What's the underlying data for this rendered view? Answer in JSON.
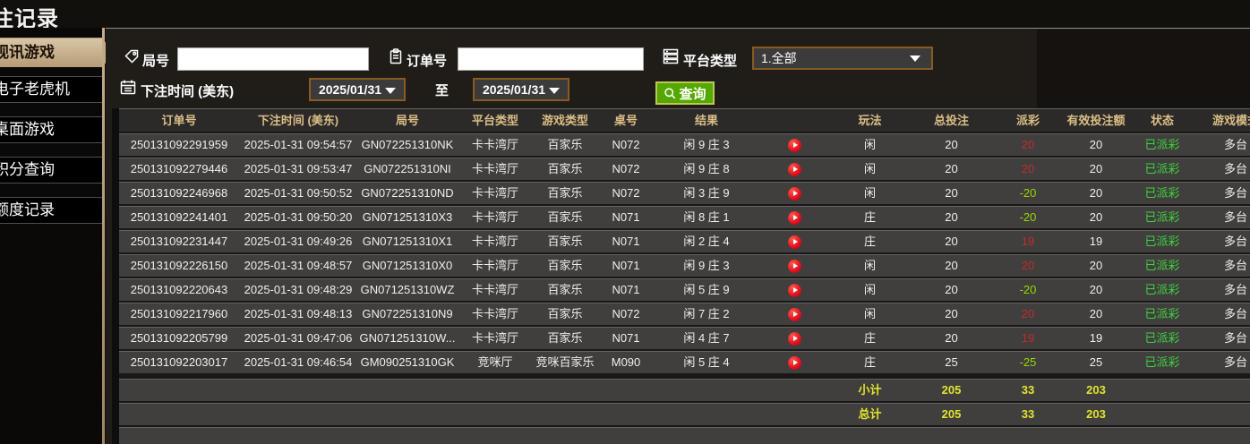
{
  "page": {
    "title": "注记录"
  },
  "sidebar": {
    "items": [
      {
        "label": "视讯游戏",
        "active": true
      },
      {
        "label": "电子老虎机",
        "active": false
      },
      {
        "label": "桌面游戏",
        "active": false
      },
      {
        "label": "积分查询",
        "active": false
      },
      {
        "label": "额度记录",
        "active": false
      }
    ]
  },
  "filters": {
    "round_label": "局号",
    "round_value": "",
    "order_label": "订单号",
    "order_value": "",
    "platform_label": "平台类型",
    "platform_value": "1.全部",
    "time_label": "下注时间 (美东)",
    "date_from": "2025/01/31",
    "to_label": "至",
    "date_to": "2025/01/31",
    "search_label": "查询"
  },
  "table": {
    "headers": {
      "order_no": "订单号",
      "bet_time": "下注时间 (美东)",
      "round_no": "局号",
      "platform": "平台类型",
      "game_type": "游戏类型",
      "table_no": "桌号",
      "result": "结果",
      "video": "",
      "play": "玩法",
      "total_bet": "总投注",
      "payout": "派彩",
      "valid_bet": "有效投注额",
      "status": "状态",
      "game_mode": "游戏模式"
    },
    "rows": [
      {
        "order_no": "250131092291959",
        "bet_time": "2025-01-31 09:54:57",
        "round_no": "GN072251310NK",
        "platform": "卡卡湾厅",
        "game_type": "百家乐",
        "table_no": "N072",
        "result": "闲 9 庄 3",
        "play": "闲",
        "total_bet": "20",
        "payout": "20",
        "valid_bet": "20",
        "status": "已派彩",
        "game_mode": "多台"
      },
      {
        "order_no": "250131092279446",
        "bet_time": "2025-01-31 09:53:47",
        "round_no": "GN072251310NI",
        "platform": "卡卡湾厅",
        "game_type": "百家乐",
        "table_no": "N072",
        "result": "闲 9 庄 8",
        "play": "闲",
        "total_bet": "20",
        "payout": "20",
        "valid_bet": "20",
        "status": "已派彩",
        "game_mode": "多台"
      },
      {
        "order_no": "250131092246968",
        "bet_time": "2025-01-31 09:50:52",
        "round_no": "GN072251310ND",
        "platform": "卡卡湾厅",
        "game_type": "百家乐",
        "table_no": "N072",
        "result": "闲 3 庄 9",
        "play": "闲",
        "total_bet": "20",
        "payout": "-20",
        "valid_bet": "20",
        "status": "已派彩",
        "game_mode": "多台"
      },
      {
        "order_no": "250131092241401",
        "bet_time": "2025-01-31 09:50:20",
        "round_no": "GN071251310X3",
        "platform": "卡卡湾厅",
        "game_type": "百家乐",
        "table_no": "N071",
        "result": "闲 8 庄 1",
        "play": "庄",
        "total_bet": "20",
        "payout": "-20",
        "valid_bet": "20",
        "status": "已派彩",
        "game_mode": "多台"
      },
      {
        "order_no": "250131092231447",
        "bet_time": "2025-01-31 09:49:26",
        "round_no": "GN071251310X1",
        "platform": "卡卡湾厅",
        "game_type": "百家乐",
        "table_no": "N071",
        "result": "闲 2 庄 4",
        "play": "庄",
        "total_bet": "20",
        "payout": "19",
        "valid_bet": "19",
        "status": "已派彩",
        "game_mode": "多台"
      },
      {
        "order_no": "250131092226150",
        "bet_time": "2025-01-31 09:48:57",
        "round_no": "GN071251310X0",
        "platform": "卡卡湾厅",
        "game_type": "百家乐",
        "table_no": "N071",
        "result": "闲 9 庄 3",
        "play": "闲",
        "total_bet": "20",
        "payout": "20",
        "valid_bet": "20",
        "status": "已派彩",
        "game_mode": "多台"
      },
      {
        "order_no": "250131092220643",
        "bet_time": "2025-01-31 09:48:29",
        "round_no": "GN071251310WZ",
        "platform": "卡卡湾厅",
        "game_type": "百家乐",
        "table_no": "N071",
        "result": "闲 5 庄 9",
        "play": "闲",
        "total_bet": "20",
        "payout": "-20",
        "valid_bet": "20",
        "status": "已派彩",
        "game_mode": "多台"
      },
      {
        "order_no": "250131092217960",
        "bet_time": "2025-01-31 09:48:13",
        "round_no": "GN072251310N9",
        "platform": "卡卡湾厅",
        "game_type": "百家乐",
        "table_no": "N072",
        "result": "闲 7 庄 2",
        "play": "闲",
        "total_bet": "20",
        "payout": "20",
        "valid_bet": "20",
        "status": "已派彩",
        "game_mode": "多台"
      },
      {
        "order_no": "250131092205799",
        "bet_time": "2025-01-31 09:47:06",
        "round_no": "GN071251310W...",
        "platform": "卡卡湾厅",
        "game_type": "百家乐",
        "table_no": "N071",
        "result": "闲 4 庄 7",
        "play": "庄",
        "total_bet": "20",
        "payout": "19",
        "valid_bet": "19",
        "status": "已派彩",
        "game_mode": "多台"
      },
      {
        "order_no": "250131092203017",
        "bet_time": "2025-01-31 09:46:54",
        "round_no": "GM090251310GK",
        "platform": "竞咪厅",
        "game_type": "竞咪百家乐",
        "table_no": "M090",
        "result": "闲 5 庄 4",
        "play": "庄",
        "total_bet": "25",
        "payout": "-25",
        "valid_bet": "25",
        "status": "已派彩",
        "game_mode": "多台"
      }
    ],
    "subtotal": {
      "label": "小计",
      "total_bet": "205",
      "payout": "33",
      "valid_bet": "203"
    },
    "grand_total": {
      "label": "总计",
      "total_bet": "205",
      "payout": "33",
      "valid_bet": "203"
    }
  },
  "colors": {
    "accent_tan": "#c0a781",
    "header_gold": "#dcbe87",
    "payout_win_red": "#c42b2b",
    "payout_loss_green": "#96d800",
    "status_paid_green": "#3fd23f",
    "totals_yellow": "#e4e42e",
    "search_button_green": "#55a800",
    "select_border_orange": "#8a5a20",
    "play_button_red": "#e01020"
  }
}
